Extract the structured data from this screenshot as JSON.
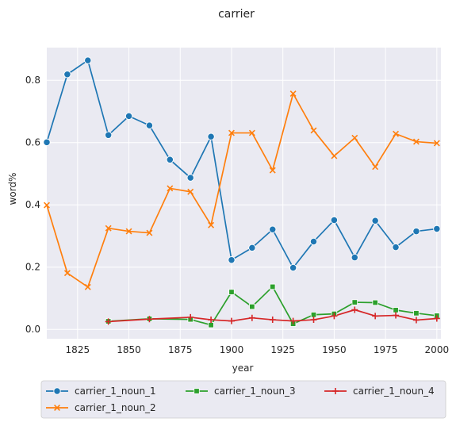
{
  "chart_data": {
    "type": "line",
    "title": "carrier",
    "xlabel": "year",
    "ylabel": "word%",
    "xlim": [
      1810,
      2002
    ],
    "ylim": [
      -0.03,
      0.905
    ],
    "x_ticks": [
      1825,
      1850,
      1875,
      1900,
      1925,
      1950,
      1975,
      2000
    ],
    "y_ticks": [
      0.0,
      0.2,
      0.4,
      0.6,
      0.8
    ],
    "grid": true,
    "legend_position": "bottom",
    "colors": {
      "plot_bg": "#eaeaf2",
      "grid": "#ffffff"
    },
    "series": [
      {
        "name": "carrier_1_noun_1",
        "color": "#1f77b4",
        "marker": "circle",
        "x": [
          1810,
          1820,
          1830,
          1840,
          1850,
          1860,
          1870,
          1880,
          1890,
          1900,
          1910,
          1920,
          1930,
          1940,
          1950,
          1960,
          1970,
          1980,
          1990,
          2000
        ],
        "values": [
          0.601,
          0.819,
          0.864,
          0.624,
          0.685,
          0.655,
          0.545,
          0.487,
          0.619,
          0.223,
          0.262,
          0.321,
          0.198,
          0.282,
          0.351,
          0.231,
          0.349,
          0.264,
          0.315,
          0.323
        ]
      },
      {
        "name": "carrier_1_noun_2",
        "color": "#ff7f0e",
        "marker": "x",
        "x": [
          1810,
          1820,
          1830,
          1840,
          1850,
          1860,
          1870,
          1880,
          1890,
          1900,
          1910,
          1920,
          1930,
          1940,
          1950,
          1960,
          1970,
          1980,
          1990,
          2000
        ],
        "values": [
          0.399,
          0.181,
          0.136,
          0.325,
          0.315,
          0.31,
          0.453,
          0.442,
          0.335,
          0.631,
          0.631,
          0.511,
          0.757,
          0.639,
          0.557,
          0.615,
          0.522,
          0.628,
          0.603,
          0.598
        ]
      },
      {
        "name": "carrier_1_noun_3",
        "color": "#2ca02c",
        "marker": "square",
        "x": [
          1840,
          1860,
          1880,
          1890,
          1900,
          1910,
          1920,
          1930,
          1940,
          1950,
          1960,
          1970,
          1980,
          1990,
          2000
        ],
        "values": [
          0.026,
          0.034,
          0.032,
          0.014,
          0.12,
          0.073,
          0.137,
          0.018,
          0.047,
          0.05,
          0.087,
          0.086,
          0.062,
          0.052,
          0.044
        ]
      },
      {
        "name": "carrier_1_noun_4",
        "color": "#d62728",
        "marker": "plus",
        "x": [
          1840,
          1860,
          1880,
          1890,
          1900,
          1910,
          1920,
          1930,
          1940,
          1950,
          1960,
          1970,
          1980,
          1990,
          2000
        ],
        "values": [
          0.025,
          0.033,
          0.039,
          0.031,
          0.027,
          0.037,
          0.031,
          0.027,
          0.031,
          0.043,
          0.063,
          0.043,
          0.045,
          0.03,
          0.035
        ]
      }
    ]
  }
}
